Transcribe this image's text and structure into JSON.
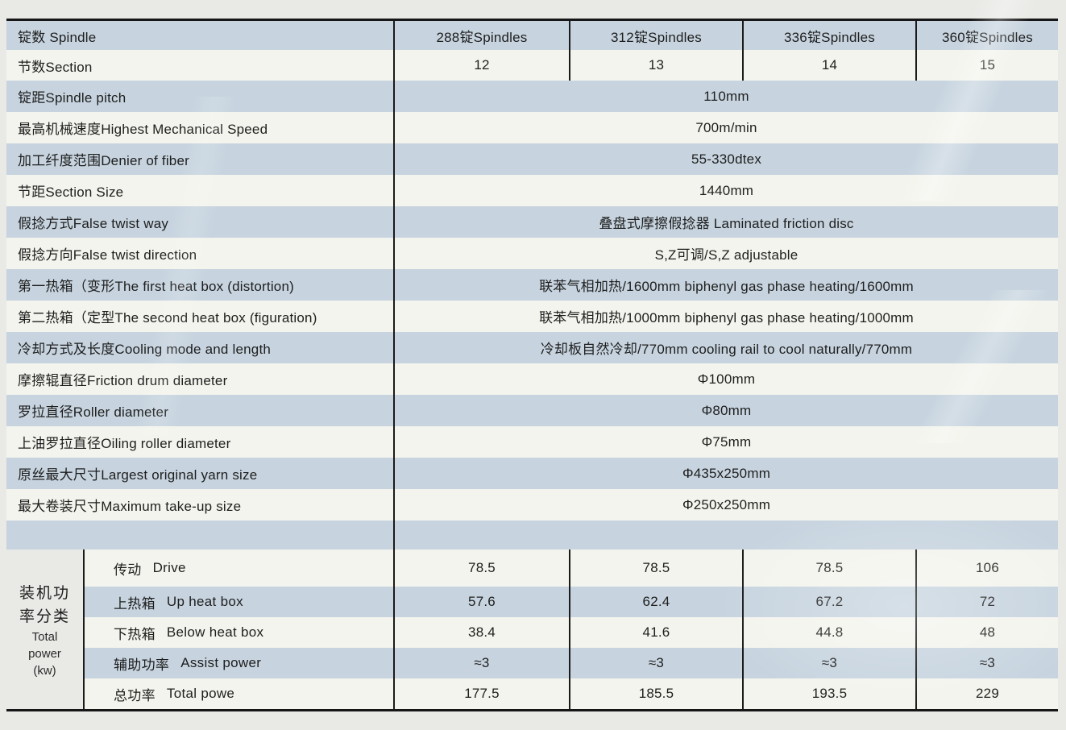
{
  "palette": {
    "row_blue": "#c7d4df",
    "row_light": "#f4f4ee",
    "page_background": "#e9e9e6",
    "line_color": "#1b1b1b",
    "text_color": "#1e1e1e"
  },
  "table": {
    "header": {
      "label": "锭数 Spindle",
      "columns": [
        "288锭Spindles",
        "312锭Spindles",
        "336锭Spindles",
        "360锭Spindles"
      ]
    },
    "section": {
      "label": "节数Section",
      "values": [
        "12",
        "13",
        "14",
        "15"
      ]
    },
    "spec_rows": [
      {
        "label": "锭距Spindle pitch",
        "value": "110mm"
      },
      {
        "label": "最高机械速度Highest Mechanical Speed",
        "value": "700m/min"
      },
      {
        "label": "加工纤度范围Denier of fiber",
        "value": "55-330dtex"
      },
      {
        "label": "节距Section Size",
        "value": "1440mm"
      },
      {
        "label": "假捻方式False twist way",
        "value": "叠盘式摩擦假捻器 Laminated friction disc"
      },
      {
        "label": "假捻方向False twist direction",
        "value": "S,Z可调/S,Z adjustable"
      },
      {
        "label": "第一热箱（变形The first heat box (distortion)",
        "value": "联苯气相加热/1600mm biphenyl gas phase heating/1600mm"
      },
      {
        "label": "第二热箱（定型The second heat box (figuration)",
        "value": "联苯气相加热/1000mm biphenyl gas phase heating/1000mm"
      },
      {
        "label": "冷却方式及长度Cooling mode and length",
        "value": "冷却板自然冷却/770mm cooling rail to cool naturally/770mm"
      },
      {
        "label": "摩擦辊直径Friction drum diameter",
        "value": "Φ100mm"
      },
      {
        "label": "罗拉直径Roller diameter",
        "value": "Φ80mm"
      },
      {
        "label": "上油罗拉直径Oiling roller diameter",
        "value": "Φ75mm"
      },
      {
        "label": "原丝最大尺寸Largest original yarn size",
        "value": "Φ435x250mm"
      },
      {
        "label": "最大卷装尺寸Maximum take-up size",
        "value": "Φ250x250mm"
      }
    ],
    "power": {
      "group_cn_line1": "装机功",
      "group_cn_line2": "率分类",
      "group_en_line1": "Total",
      "group_en_line2": "power",
      "group_en_line3": "(kw)",
      "rows": [
        {
          "label_cn": "传动",
          "label_en": "Drive",
          "values": [
            "78.5",
            "78.5",
            "78.5",
            "106"
          ]
        },
        {
          "label_cn": "上热箱",
          "label_en": "Up heat box",
          "values": [
            "57.6",
            "62.4",
            "67.2",
            "72"
          ]
        },
        {
          "label_cn": "下热箱",
          "label_en": "Below heat box",
          "values": [
            "38.4",
            "41.6",
            "44.8",
            "48"
          ]
        },
        {
          "label_cn": "辅助功率",
          "label_en": "Assist power",
          "values": [
            "≈3",
            "≈3",
            "≈3",
            "≈3"
          ]
        },
        {
          "label_cn": "总功率",
          "label_en": "Total powe",
          "values": [
            "177.5",
            "185.5",
            "193.5",
            "229"
          ]
        }
      ]
    }
  }
}
